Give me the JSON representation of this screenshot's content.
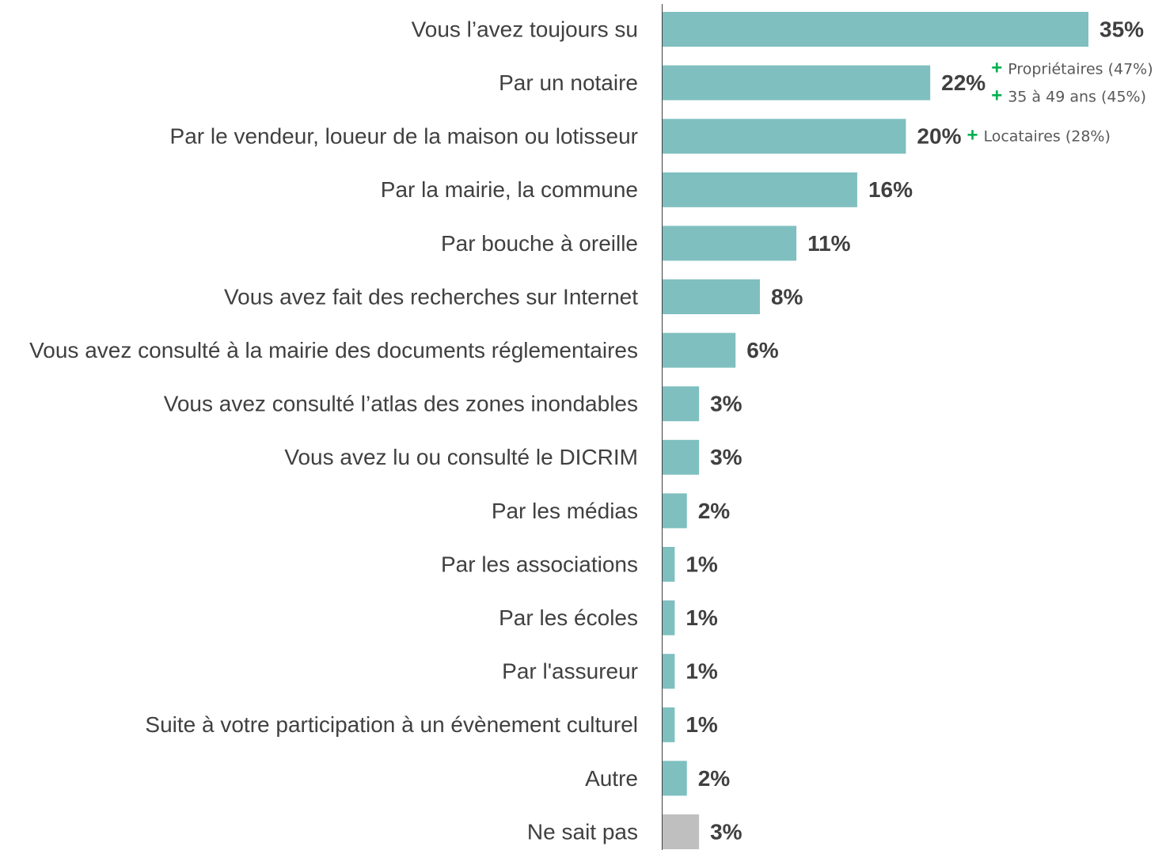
{
  "chart_data": {
    "type": "bar",
    "orientation": "horizontal",
    "categories": [
      "Vous l’avez toujours su",
      "Par un notaire",
      "Par le vendeur, loueur de la maison ou lotisseur",
      "Par la mairie, la commune",
      "Par bouche à oreille",
      "Vous avez fait des recherches sur Internet",
      "Vous avez consulté à la mairie des documents réglementaires",
      "Vous avez consulté l’atlas des zones inondables",
      "Vous avez lu ou consulté le DICRIM",
      "Par les médias",
      "Par les associations",
      "Par les écoles",
      "Par l'assureur",
      "Suite à votre participation à un évènement culturel",
      "Autre",
      "Ne sait pas"
    ],
    "values": [
      35,
      22,
      20,
      16,
      11,
      8,
      6,
      3,
      3,
      2,
      1,
      1,
      1,
      1,
      2,
      3
    ],
    "value_labels": [
      "35%",
      "22%",
      "20%",
      "16%",
      "11%",
      "8%",
      "6%",
      "3%",
      "3%",
      "2%",
      "1%",
      "1%",
      "1%",
      "1%",
      "2%",
      "3%"
    ],
    "colors": [
      "#7fbfbf",
      "#7fbfbf",
      "#7fbfbf",
      "#7fbfbf",
      "#7fbfbf",
      "#7fbfbf",
      "#7fbfbf",
      "#7fbfbf",
      "#7fbfbf",
      "#7fbfbf",
      "#7fbfbf",
      "#7fbfbf",
      "#7fbfbf",
      "#7fbfbf",
      "#7fbfbf",
      "#bfbfbf"
    ],
    "annotations": [
      {
        "category": "Par un notaire",
        "marker": "+",
        "items": [
          "Propriétaires (47%)",
          "35 à 49 ans (45%)"
        ]
      },
      {
        "category": "Par le vendeur, loueur de la maison ou lotisseur",
        "marker": "+",
        "items": [
          "Locataires (28%)"
        ]
      }
    ]
  }
}
